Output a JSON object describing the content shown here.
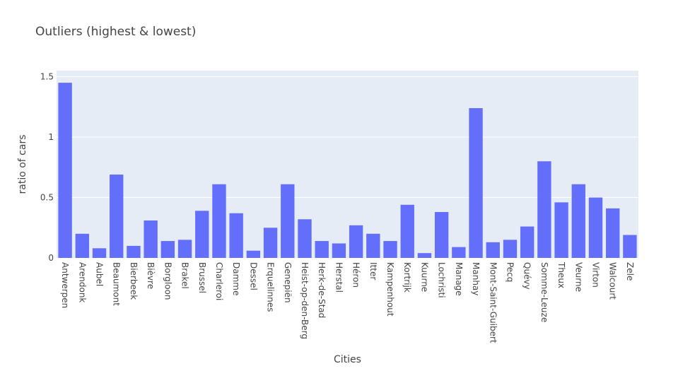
{
  "chart_data": {
    "type": "bar",
    "title": "Outliers (highest & lowest)",
    "xlabel": "Cities",
    "ylabel": "ratio of cars",
    "ylim": [
      0,
      1.55
    ],
    "yticks": [
      0,
      0.5,
      1,
      1.5
    ],
    "ytick_labels": [
      "0",
      "0.5",
      "1",
      "1.5"
    ],
    "grid": true,
    "categories": [
      "Antwerpen",
      "Arendonk",
      "Aubel",
      "Beaumont",
      "Bierbeek",
      "Bièvre",
      "Borgloon",
      "Brakel",
      "Brussel",
      "Charleroi",
      "Damme",
      "Dessel",
      "Erquelinnes",
      "Genepiën",
      "Heist-op-den-Berg",
      "Herk-de-Stad",
      "Herstal",
      "Héron",
      "Itter",
      "Kampenhout",
      "Kortrijk",
      "Kuurne",
      "Lochristi",
      "Manage",
      "Manhay",
      "Mont-Saint-Guibert",
      "Pecq",
      "Quévy",
      "Somme-Leuze",
      "Theux",
      "Veurne",
      "Virton",
      "Walcourt",
      "Zele"
    ],
    "values": [
      1.45,
      0.2,
      0.08,
      0.69,
      0.1,
      0.31,
      0.14,
      0.15,
      0.39,
      0.61,
      0.37,
      0.06,
      0.25,
      0.61,
      0.32,
      0.14,
      0.12,
      0.27,
      0.2,
      0.14,
      0.44,
      0.04,
      0.38,
      0.09,
      1.24,
      0.13,
      0.15,
      0.26,
      0.8,
      0.46,
      0.61,
      0.5,
      0.41,
      0.19
    ],
    "colors": {
      "bar": "#636efa",
      "plot_bg": "#e5ecf6",
      "grid": "#ffffff",
      "text": "#444444"
    }
  }
}
